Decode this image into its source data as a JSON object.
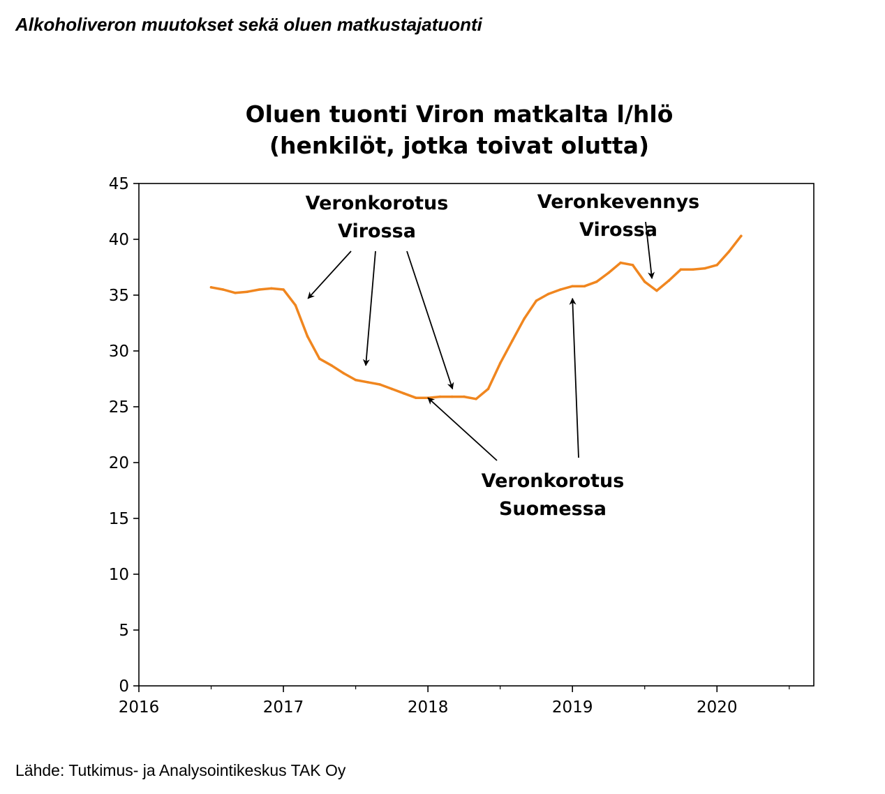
{
  "header": {
    "title": "Alkoholiveron muutokset sekä oluen matkustajatuonti"
  },
  "footer": {
    "source": "Lähde: Tutkimus- ja Analysointikeskus TAK Oy"
  },
  "colors": {
    "line": "#f0861f",
    "axis": "#000000",
    "background": "#ffffff"
  },
  "chart_data": {
    "type": "line",
    "title": [
      "Oluen tuonti Viron matkalta l/hlö",
      "(henkilöt, jotka toivat olutta)"
    ],
    "xlabel": "",
    "ylabel": "",
    "xlim": [
      2016.0,
      2020.67
    ],
    "ylim": [
      0,
      45
    ],
    "x_ticks": [
      "2016",
      "2017",
      "2018",
      "2019",
      "2020"
    ],
    "y_ticks": [
      "0",
      "5",
      "10",
      "15",
      "20",
      "25",
      "30",
      "35",
      "40",
      "45"
    ],
    "grid": false,
    "legend": "none",
    "series": [
      {
        "x": [
          2016.5,
          2016.583,
          2016.667,
          2016.75,
          2016.833,
          2016.917,
          2017.0,
          2017.083,
          2017.167,
          2017.25,
          2017.333,
          2017.417,
          2017.5,
          2017.583,
          2017.667,
          2017.75,
          2017.833,
          2017.917,
          2018.0,
          2018.083,
          2018.167,
          2018.25,
          2018.333,
          2018.417,
          2018.5,
          2018.583,
          2018.667,
          2018.75,
          2018.833,
          2018.917,
          2019.0,
          2019.083,
          2019.167,
          2019.25,
          2019.333,
          2019.417,
          2019.5,
          2019.583,
          2019.667,
          2019.75,
          2019.833,
          2019.917,
          2020.0,
          2020.083,
          2020.167
        ],
        "values": [
          35.7,
          35.5,
          35.2,
          35.3,
          35.5,
          35.6,
          35.5,
          34.1,
          31.3,
          29.3,
          28.7,
          28.0,
          27.4,
          27.2,
          27.0,
          26.6,
          26.2,
          25.8,
          25.8,
          25.9,
          25.9,
          25.9,
          25.7,
          26.6,
          28.9,
          30.9,
          32.9,
          34.5,
          35.1,
          35.5,
          35.8,
          35.8,
          36.2,
          37.0,
          37.9,
          37.7,
          36.2,
          35.4,
          36.3,
          37.3,
          37.3,
          37.4,
          37.7,
          38.9,
          40.3
        ]
      }
    ],
    "annotations": [
      {
        "lines": [
          "Veronkorotus",
          "Virossa"
        ],
        "points_to": [
          [
            2017.17,
            34.7
          ],
          [
            2017.57,
            28.7
          ],
          [
            2018.17,
            26.6
          ]
        ]
      },
      {
        "lines": [
          "Veronkorotus",
          "Suomessa"
        ],
        "points_to": [
          [
            2018.0,
            25.8
          ],
          [
            2019.0,
            34.7
          ]
        ]
      },
      {
        "lines": [
          "Veronkevennys",
          "Virossa"
        ],
        "points_to": [
          [
            2019.55,
            36.5
          ]
        ]
      }
    ]
  }
}
